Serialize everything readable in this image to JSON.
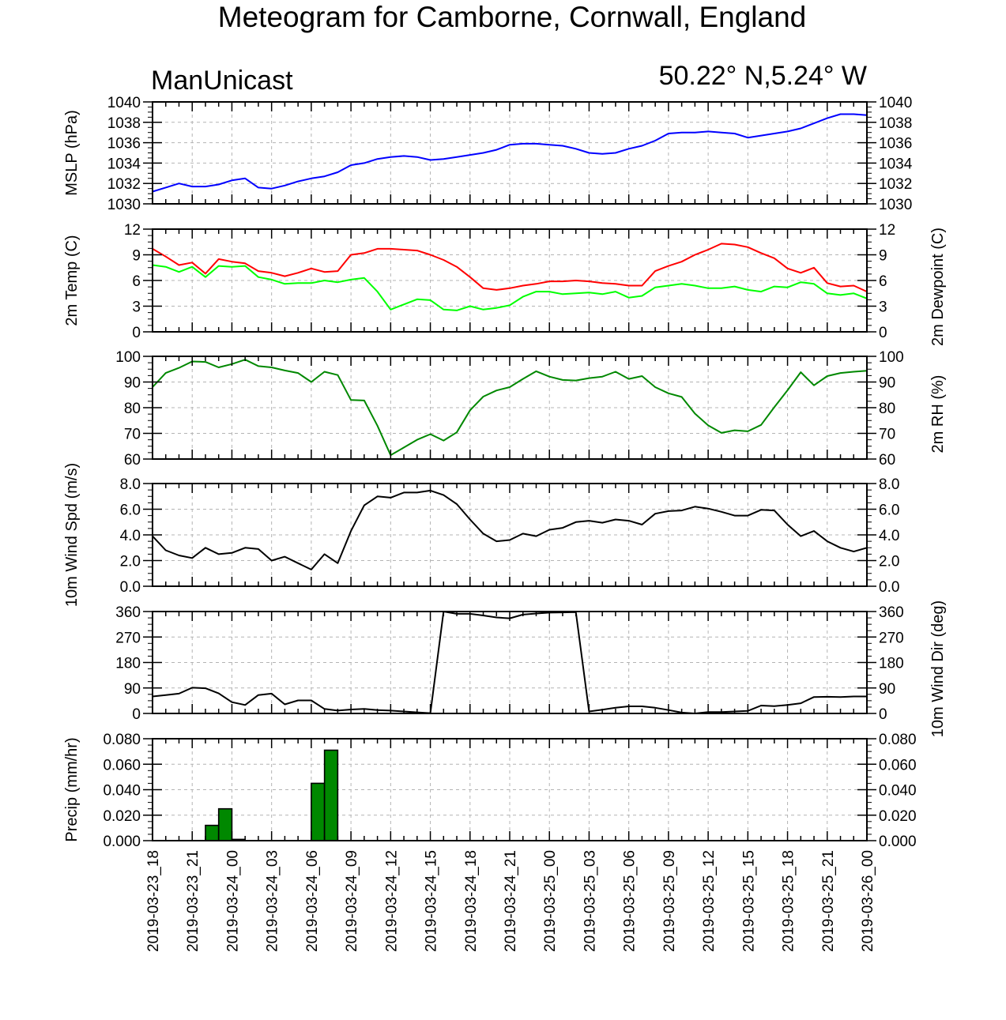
{
  "title": "Meteogram for Camborne, Cornwall, England",
  "model_label": "ManUnicast",
  "location_label": "50.22° N,5.24° W",
  "colors": {
    "mslp": "#0000ff",
    "temp": "#ff0000",
    "dewpoint": "#00ff00",
    "rh": "#008800",
    "wind": "#000000",
    "precip_fill": "#008800",
    "grid": "#b4b4b4"
  },
  "chart_data": [
    {
      "type": "line",
      "panel": "mslp",
      "ylabel_left": "MSLP (hPa)",
      "ylabel_right": "",
      "ylim": [
        1030,
        1040
      ],
      "yticks": [
        "1030",
        "1032",
        "1034",
        "1036",
        "1038",
        "1040"
      ],
      "right_ticks": true,
      "x_hours": [
        0,
        1,
        2,
        3,
        4,
        5,
        6,
        7,
        8,
        9,
        10,
        11,
        12,
        13,
        14,
        15,
        16,
        17,
        18,
        19,
        20,
        21,
        22,
        23,
        24,
        25,
        26,
        27,
        28,
        29,
        30,
        31,
        32,
        33,
        34,
        35,
        36,
        37,
        38,
        39,
        40,
        41,
        42,
        43,
        44,
        45,
        46,
        47,
        48,
        49,
        50,
        51,
        52,
        53,
        54
      ],
      "series": [
        {
          "key": "mslp",
          "values": [
            1031.2,
            1031.6,
            1032.0,
            1031.7,
            1031.7,
            1031.9,
            1032.3,
            1032.5,
            1031.6,
            1031.5,
            1031.8,
            1032.2,
            1032.5,
            1032.7,
            1033.1,
            1033.8,
            1034.0,
            1034.4,
            1034.6,
            1034.7,
            1034.6,
            1034.3,
            1034.4,
            1034.6,
            1034.8,
            1035.0,
            1035.3,
            1035.8,
            1035.9,
            1035.9,
            1035.8,
            1035.7,
            1035.4,
            1035.0,
            1034.9,
            1035.0,
            1035.4,
            1035.7,
            1036.2,
            1036.9,
            1037.0,
            1037.0,
            1037.1,
            1037.0,
            1036.9,
            1036.5,
            1036.7,
            1036.9,
            1037.1,
            1037.4,
            1037.9,
            1038.4,
            1038.8,
            1038.8,
            1038.7
          ]
        }
      ]
    },
    {
      "type": "line",
      "panel": "temp",
      "ylabel_left": "2m Temp (C)",
      "ylabel_right": "2m Dewpoint (C)",
      "ylim": [
        0,
        12
      ],
      "yticks": [
        "0",
        "3",
        "6",
        "9",
        "12"
      ],
      "right_ticks": true,
      "x_hours": [
        0,
        1,
        2,
        3,
        4,
        5,
        6,
        7,
        8,
        9,
        10,
        11,
        12,
        13,
        14,
        15,
        16,
        17,
        18,
        19,
        20,
        21,
        22,
        23,
        24,
        25,
        26,
        27,
        28,
        29,
        30,
        31,
        32,
        33,
        34,
        35,
        36,
        37,
        38,
        39,
        40,
        41,
        42,
        43,
        44,
        45,
        46,
        47,
        48,
        49,
        50,
        51,
        52,
        53,
        54
      ],
      "series": [
        {
          "key": "temp",
          "values": [
            9.7,
            8.8,
            7.8,
            8.1,
            6.8,
            8.5,
            8.2,
            8.0,
            7.1,
            6.9,
            6.5,
            6.9,
            7.4,
            7.0,
            7.1,
            9.0,
            9.2,
            9.7,
            9.7,
            9.6,
            9.5,
            9.0,
            8.4,
            7.6,
            6.4,
            5.1,
            4.9,
            5.1,
            5.4,
            5.6,
            5.9,
            5.9,
            6.0,
            5.9,
            5.7,
            5.6,
            5.4,
            5.4,
            7.1,
            7.7,
            8.2,
            9.0,
            9.6,
            10.3,
            10.2,
            9.9,
            9.2,
            8.6,
            7.4,
            6.9,
            7.5,
            5.7,
            5.3,
            5.4,
            4.7
          ]
        },
        {
          "key": "dewpoint",
          "values": [
            7.8,
            7.6,
            7.0,
            7.6,
            6.4,
            7.7,
            7.6,
            7.7,
            6.4,
            6.1,
            5.6,
            5.7,
            5.7,
            6.0,
            5.8,
            6.1,
            6.3,
            4.7,
            2.6,
            3.2,
            3.8,
            3.7,
            2.6,
            2.5,
            3.0,
            2.6,
            2.8,
            3.1,
            4.1,
            4.7,
            4.7,
            4.4,
            4.5,
            4.6,
            4.4,
            4.7,
            4.0,
            4.2,
            5.2,
            5.4,
            5.6,
            5.4,
            5.1,
            5.1,
            5.3,
            4.9,
            4.7,
            5.3,
            5.2,
            5.8,
            5.6,
            4.5,
            4.3,
            4.5,
            3.9
          ]
        }
      ]
    },
    {
      "type": "line",
      "panel": "rh",
      "ylabel_left": "",
      "ylabel_right": "2m RH (%)",
      "ylim": [
        60,
        100
      ],
      "yticks": [
        "60",
        "70",
        "80",
        "90",
        "100"
      ],
      "right_ticks": true,
      "x_hours": [
        0,
        1,
        2,
        3,
        4,
        5,
        6,
        7,
        8,
        9,
        10,
        11,
        12,
        13,
        14,
        15,
        16,
        17,
        18,
        19,
        20,
        21,
        22,
        23,
        24,
        25,
        26,
        27,
        28,
        29,
        30,
        31,
        32,
        33,
        34,
        35,
        36,
        37,
        38,
        39,
        40,
        41,
        42,
        43,
        44,
        45,
        46,
        47,
        48,
        49,
        50,
        51,
        52,
        53,
        54
      ],
      "series": [
        {
          "key": "rh",
          "values": [
            88,
            93.5,
            95.5,
            98,
            97.8,
            95.7,
            97,
            98.7,
            96.2,
            95.7,
            94.5,
            93.5,
            90,
            94,
            92.7,
            83,
            82.8,
            73,
            61.5,
            64.5,
            67.5,
            69.7,
            67.2,
            70.4,
            79,
            84.3,
            86.7,
            88,
            91.2,
            94.2,
            92.1,
            90.8,
            90.6,
            91.5,
            92.1,
            94,
            91.2,
            92.3,
            88,
            85.6,
            84.2,
            77.7,
            73.1,
            70.2,
            71.2,
            70.8,
            73.3,
            80.2,
            86.8,
            93.8,
            88.7,
            92.3,
            93.5,
            94,
            94.4
          ]
        }
      ]
    },
    {
      "type": "line",
      "panel": "wind_speed",
      "ylabel_left": "10m Wind Spd (m/s)",
      "ylabel_right": "",
      "ylim": [
        0,
        8
      ],
      "yticks": [
        "0.0",
        "2.0",
        "4.0",
        "6.0",
        "8.0"
      ],
      "right_ticks": true,
      "x_hours": [
        0,
        1,
        2,
        3,
        4,
        5,
        6,
        7,
        8,
        9,
        10,
        11,
        12,
        13,
        14,
        15,
        16,
        17,
        18,
        19,
        20,
        21,
        22,
        23,
        24,
        25,
        26,
        27,
        28,
        29,
        30,
        31,
        32,
        33,
        34,
        35,
        36,
        37,
        38,
        39,
        40,
        41,
        42,
        43,
        44,
        45,
        46,
        47,
        48,
        49,
        50,
        51,
        52,
        53,
        54
      ],
      "series": [
        {
          "key": "wind",
          "values": [
            3.9,
            2.8,
            2.4,
            2.2,
            3.0,
            2.5,
            2.6,
            3.0,
            2.9,
            2.0,
            2.3,
            1.8,
            1.3,
            2.5,
            1.8,
            4.3,
            6.3,
            7.0,
            6.9,
            7.3,
            7.3,
            7.45,
            7.1,
            6.4,
            5.2,
            4.1,
            3.5,
            3.6,
            4.1,
            3.9,
            4.4,
            4.55,
            5.0,
            5.1,
            4.95,
            5.2,
            5.1,
            4.8,
            5.65,
            5.85,
            5.9,
            6.2,
            6.05,
            5.8,
            5.5,
            5.5,
            5.95,
            5.9,
            4.8,
            3.9,
            4.3,
            3.5,
            3.0,
            2.7,
            3.0
          ]
        }
      ]
    },
    {
      "type": "line",
      "panel": "wind_dir",
      "ylabel_left": "",
      "ylabel_right": "10m Wind Dir (deg)",
      "ylim": [
        0,
        360
      ],
      "yticks": [
        "0",
        "90",
        "180",
        "270",
        "360"
      ],
      "right_ticks": true,
      "x_hours": [
        0,
        1,
        2,
        3,
        4,
        5,
        6,
        7,
        8,
        9,
        10,
        11,
        12,
        13,
        14,
        15,
        16,
        17,
        18,
        19,
        20,
        21,
        22,
        23,
        24,
        25,
        26,
        27,
        28,
        29,
        30,
        31,
        32,
        33,
        34,
        35,
        36,
        37,
        38,
        39,
        40,
        41,
        42,
        43,
        44,
        45,
        46,
        47,
        48,
        49,
        50,
        51,
        52,
        53,
        54
      ],
      "series": [
        {
          "key": "wind_dir",
          "values": [
            60,
            65,
            70,
            91,
            89,
            71,
            40,
            30,
            65,
            70,
            32,
            46,
            46,
            16,
            10,
            14,
            16,
            12,
            10,
            7,
            4,
            1,
            360,
            352,
            352,
            346,
            339,
            336,
            349,
            353,
            356,
            357,
            358,
            7,
            13,
            20,
            25,
            25,
            20,
            12,
            3,
            0,
            5,
            5,
            7,
            9,
            28,
            26,
            30,
            36,
            58,
            59,
            58,
            60,
            60
          ]
        }
      ]
    },
    {
      "type": "bar",
      "panel": "precip",
      "ylabel_left": "Precip (mm/hr)",
      "ylabel_right": "",
      "ylim": [
        0,
        0.08
      ],
      "yticks": [
        "0.000",
        "0.020",
        "0.040",
        "0.060",
        "0.080"
      ],
      "right_ticks": true,
      "x_hours": [
        0,
        1,
        2,
        3,
        4,
        5,
        6,
        7,
        8,
        9,
        10,
        11,
        12,
        13,
        14,
        15,
        16,
        17,
        18,
        19,
        20,
        21,
        22,
        23,
        24,
        25,
        26,
        27,
        28,
        29,
        30,
        31,
        32,
        33,
        34,
        35,
        36,
        37,
        38,
        39,
        40,
        41,
        42,
        43,
        44,
        45,
        46,
        47,
        48,
        49,
        50,
        51,
        52,
        53,
        54
      ],
      "series": [
        {
          "key": "precip",
          "values": [
            0,
            0,
            0,
            0,
            0.012,
            0.025,
            0.001,
            0,
            0,
            0,
            0,
            0,
            0.045,
            0.071,
            0,
            0,
            0,
            0,
            0,
            0,
            0,
            0,
            0,
            0,
            0,
            0,
            0,
            0,
            0,
            0,
            0,
            0,
            0,
            0,
            0,
            0,
            0,
            0,
            0,
            0,
            0,
            0,
            0,
            0,
            0,
            0,
            0,
            0,
            0,
            0,
            0,
            0,
            0,
            0,
            0
          ]
        }
      ]
    }
  ],
  "x_axis": {
    "tick_labels": [
      "2019-03-23_18",
      "2019-03-23_21",
      "2019-03-24_00",
      "2019-03-24_03",
      "2019-03-24_06",
      "2019-03-24_09",
      "2019-03-24_12",
      "2019-03-24_15",
      "2019-03-24_18",
      "2019-03-24_21",
      "2019-03-25_00",
      "2019-03-25_03",
      "2019-03-25_06",
      "2019-03-25_09",
      "2019-03-25_12",
      "2019-03-25_15",
      "2019-03-25_18",
      "2019-03-25_21",
      "2019-03-26_00"
    ],
    "hours_per_tick": 3,
    "grid": true
  }
}
